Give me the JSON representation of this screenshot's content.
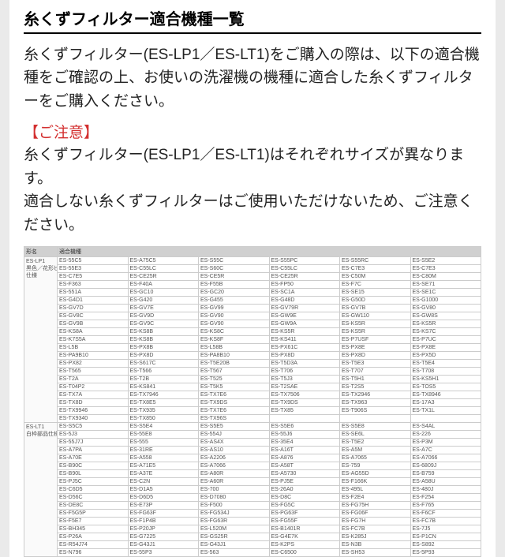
{
  "header": {
    "title": "糸くずフィルター適合機種一覧"
  },
  "intro": "糸くずフィルター(ES-LP1／ES-LT1)をご購入の際は、以下の適合機種をご確認の上、お使いの洗濯機の機種に適合した糸くずフィルターをご購入ください。",
  "caution": {
    "head": "【ご注意】",
    "body": "糸くずフィルター(ES-LP1／ES-LT1)はそれぞれサイズが異なります。\n適合しない糸くずフィルターはご使用いただけないため、ご注意ください。"
  },
  "table": {
    "col_header_label": "形名",
    "col_header_models": "適合機種",
    "groups": [
      {
        "label": "ES-LP1\n黒色／花形ビ\n仕様",
        "rows": [
          [
            "ES-55C5",
            "ES-A75C5",
            "ES-S55C",
            "ES-S55PC",
            "ES-S55RC",
            "ES-S5E2"
          ],
          [
            "ES-55E3",
            "ES-C55LC",
            "ES-S60C",
            "ES-C55LC",
            "ES-C7E3",
            "ES-C7E3"
          ],
          [
            "ES-C7E5",
            "ES-CE25R",
            "ES-CE5R",
            "ES-CE25R",
            "ES-C50M",
            "ES-C80M"
          ],
          [
            "ES-F363",
            "ES-F40A",
            "ES-F55B",
            "ES-FP50",
            "ES-F7C",
            "ES-SE71"
          ],
          [
            "ES-551A",
            "ES-GC10",
            "ES-GC20",
            "ES-SC1A",
            "ES-SE15",
            "ES-SE1C"
          ],
          [
            "ES-G4D1",
            "ES-G420",
            "ES-G455",
            "ES-G48D",
            "ES-G50D",
            "ES-G1000"
          ],
          [
            "ES-GV7D",
            "ES-GV7E",
            "ES-GV99",
            "ES-GV79R",
            "ES-GV7B",
            "ES-GV80"
          ],
          [
            "ES-GV8C",
            "ES-GV9D",
            "ES-GV90",
            "ES-GW9E",
            "ES-GW110",
            "ES-GW8S"
          ],
          [
            "ES-GV9B",
            "ES-GV9C",
            "ES-GV90",
            "ES-GW9A",
            "ES-KS5R",
            "ES-KS5R"
          ],
          [
            "ES-KS8A",
            "ES-KS8B",
            "ES-KS8C",
            "ES-KS5R",
            "ES-KS5R",
            "ES-KS7C"
          ],
          [
            "ES-K7S5A",
            "ES-KS8B",
            "ES-KS8F",
            "ES-KS411",
            "ES-P7USF",
            "ES-P7UC"
          ],
          [
            "ES-L5B",
            "ES-PX8B",
            "ES-L58B",
            "ES-PX61C",
            "ES-PX8E",
            "ES-PX8E"
          ],
          [
            "ES-PA9B10",
            "ES-PX8D",
            "ES-PA8B10",
            "ES-PX8D",
            "ES-PX8D",
            "ES-PX5D"
          ],
          [
            "ES-PX82",
            "ES-S617C",
            "ES-T5E20B",
            "ES-T5D3A",
            "ES-T5E3",
            "ES-T5E4"
          ],
          [
            "ES-T565",
            "ES-T566",
            "ES-T567",
            "ES-T706",
            "ES-T707",
            "ES-T708"
          ],
          [
            "ES-T2A",
            "ES-T2B",
            "ES-T525",
            "ES-T5J3",
            "ES-T5H1",
            "ES-KS5H1"
          ],
          [
            "ES-T04P2",
            "ES-KS841",
            "ES-T5K5",
            "ES-T2SAE",
            "ES-T2S5",
            "ES-TOS5"
          ],
          [
            "ES-TX7A",
            "ES-TX7946",
            "ES-TX7E6",
            "ES-TX7506",
            "ES-TX2946",
            "ES-TX8946"
          ],
          [
            "ES-TX8D",
            "ES-TX8E5",
            "ES-TX9DS",
            "ES-TX9DS",
            "ES-TX963",
            "ES-17A3"
          ],
          [
            "ES-TX9946",
            "ES-TX935",
            "ES-TX7E6",
            "ES-TX85",
            "ES-T906S",
            "ES-TX1L"
          ],
          [
            "ES-TX9340",
            "ES-TX850",
            "ES-TX96S",
            "",
            "",
            ""
          ]
        ]
      },
      {
        "label": "ES-LT1\n白枠部品仕様",
        "rows": [
          [
            "ES-S5C5",
            "ES-S5E4",
            "ES-S5E5",
            "ES-S5E6",
            "ES-S5E8",
            "ES-S4AL"
          ],
          [
            "ES-5J3",
            "ES-55E8",
            "ES-554J",
            "ES-55J6",
            "ES-SE6L",
            "ES-226"
          ],
          [
            "ES-55J7J",
            "ES-555",
            "ES-AS4X",
            "ES-35E4",
            "ES-T5E2",
            "ES-P3M"
          ],
          [
            "ES-A7PA",
            "ES-31RE",
            "ES-AS10",
            "ES-A16T",
            "ES-A5M",
            "ES-A7C"
          ],
          [
            "ES-A70E",
            "ES-A558",
            "ES-A2206",
            "ES-A876",
            "ES-A7065",
            "ES-A7066"
          ],
          [
            "ES-B90C",
            "ES-A71E5",
            "ES-A7066",
            "ES-A58T",
            "ES-759",
            "ES-6809J"
          ],
          [
            "ES-B90L",
            "ES-A37E",
            "ES-A80R",
            "ES-A5730",
            "ES-AG55D",
            "ES-B759"
          ],
          [
            "ES-PJ5C",
            "ES-C2N",
            "ES-A60R",
            "ES-PJ5E",
            "ES-F166K",
            "ES-A58U"
          ],
          [
            "ES-C6D5",
            "ES-D1A5",
            "ES-700",
            "ES-26A0",
            "ES-495L",
            "ES-480J"
          ],
          [
            "ES-D56C",
            "ES-D6D5",
            "ES-D7080",
            "ES-D8C",
            "ES-F2E4",
            "ES-F254"
          ],
          [
            "ES-DE8C",
            "ES-E73P",
            "ES-F500",
            "ES-FG5C",
            "ES-FG75H",
            "ES-F765"
          ],
          [
            "ES-F5G5P",
            "ES-FG63F",
            "ES-FG534J",
            "ES-PG63F",
            "ES-FG06F",
            "ES-F6CF"
          ],
          [
            "ES-F5E7",
            "ES-F1P4B",
            "ES-FG63R",
            "ES-FG55F",
            "ES-FG7H",
            "ES-FC7B"
          ],
          [
            "ES-BH345",
            "ES-P20JP",
            "ES-L520M",
            "ES-B1401R",
            "ES-FC7B",
            "ES-7J5"
          ],
          [
            "ES-P26A",
            "ES-G7225",
            "ES-GS25R",
            "ES-G4E7K",
            "ES-K285J",
            "ES-P1CN"
          ],
          [
            "ES-R54J74",
            "ES-G43J1",
            "ES-G43J1",
            "ES-K2PS",
            "ES-N3B",
            "ES-S892"
          ],
          [
            "ES-N796",
            "ES-55P3",
            "ES-563",
            "ES-C6500",
            "ES-SH53",
            "ES-5P93"
          ]
        ]
      }
    ]
  }
}
